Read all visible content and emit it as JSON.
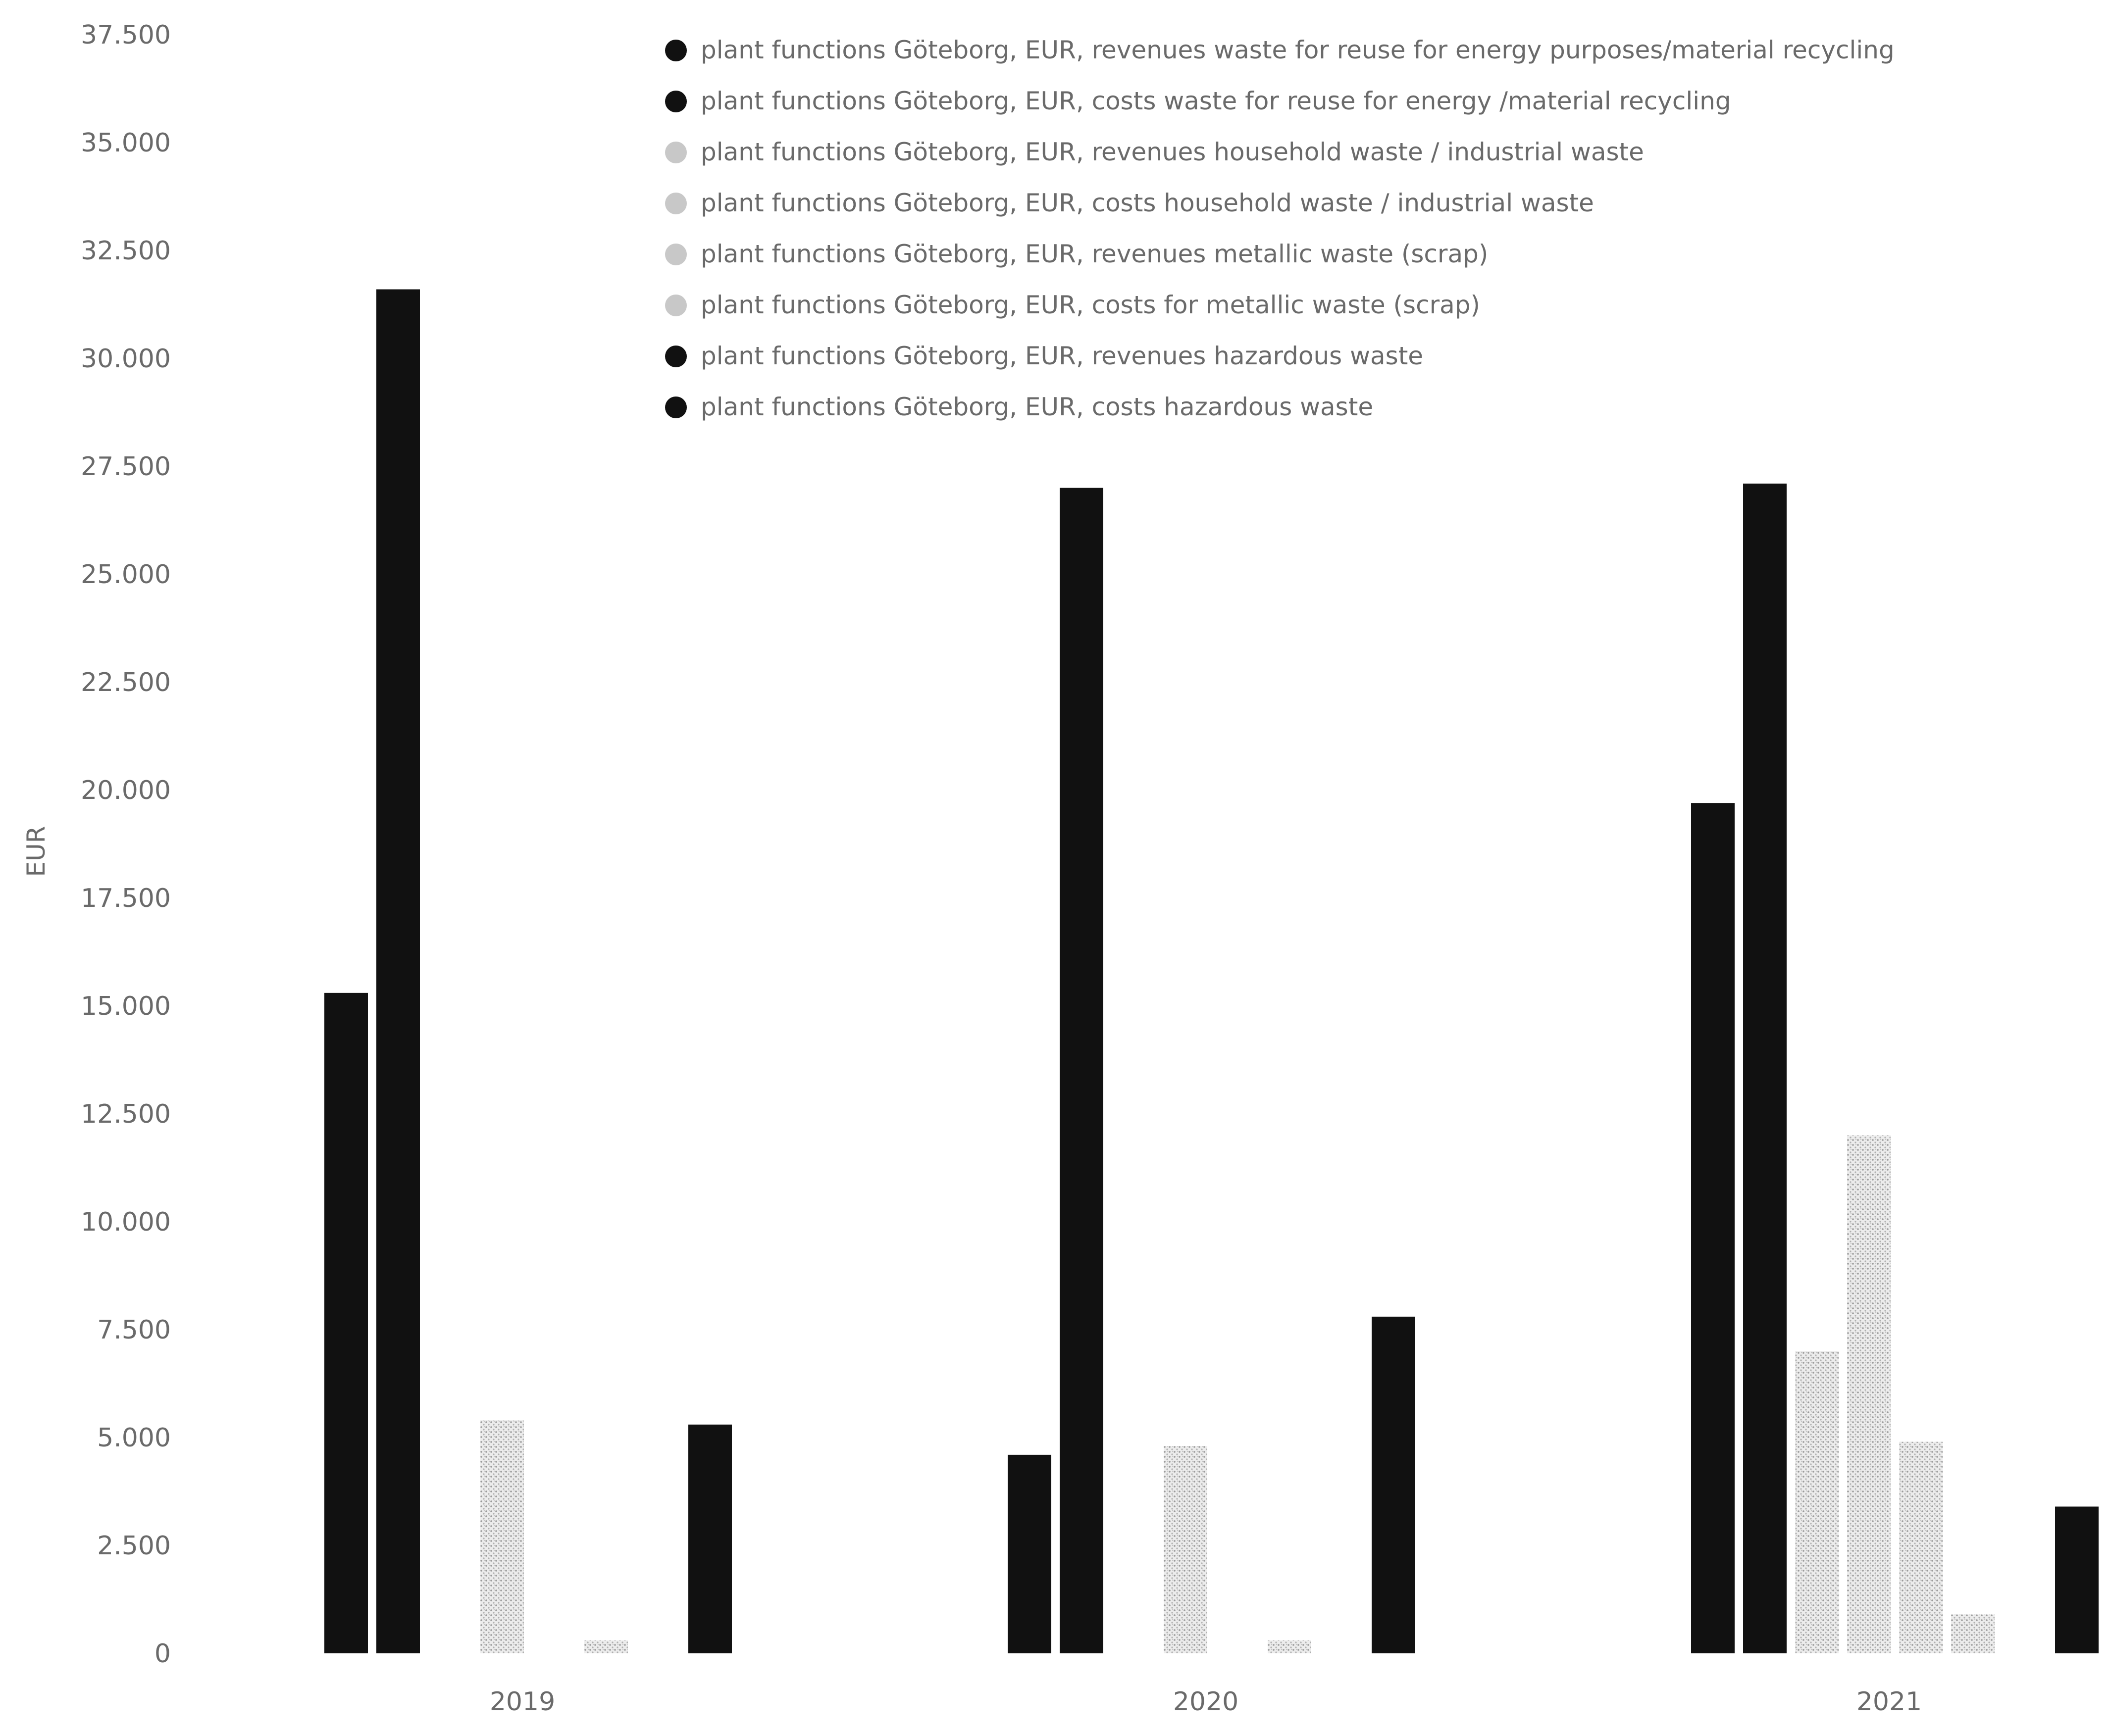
{
  "chart_data": {
    "type": "bar",
    "ylabel": "EUR",
    "xlabel": "",
    "ylim": [
      0,
      37500
    ],
    "yticks": [
      {
        "value": 0,
        "label": "0"
      },
      {
        "value": 2500,
        "label": "2.500"
      },
      {
        "value": 5000,
        "label": "5.000"
      },
      {
        "value": 7500,
        "label": "7.500"
      },
      {
        "value": 10000,
        "label": "10.000"
      },
      {
        "value": 12500,
        "label": "12.500"
      },
      {
        "value": 15000,
        "label": "15.000"
      },
      {
        "value": 17500,
        "label": "17.500"
      },
      {
        "value": 20000,
        "label": "20.000"
      },
      {
        "value": 22500,
        "label": "22.500"
      },
      {
        "value": 25000,
        "label": "25.000"
      },
      {
        "value": 27500,
        "label": "27.500"
      },
      {
        "value": 30000,
        "label": "30.000"
      },
      {
        "value": 32500,
        "label": "32.500"
      },
      {
        "value": 35000,
        "label": "35.000"
      },
      {
        "value": 37500,
        "label": "37.500"
      }
    ],
    "categories": [
      "2019",
      "2020",
      "2021"
    ],
    "legend_position": "top-right",
    "grid": false,
    "series": [
      {
        "name": "plant functions Göteborg, EUR, revenues waste for reuse for energy purposes/material recycling",
        "color": "#111111",
        "pattern": "solid",
        "values": [
          15300,
          4600,
          19700
        ]
      },
      {
        "name": "plant functions Göteborg, EUR, costs waste for reuse for energy /material recycling",
        "color": "#111111",
        "pattern": "solid",
        "values": [
          31600,
          27000,
          27100
        ]
      },
      {
        "name": "plant functions Göteborg, EUR, revenues household waste / industrial waste",
        "color": "#cfcfcf",
        "pattern": "dotted",
        "values": [
          0,
          0,
          7000
        ]
      },
      {
        "name": "plant functions Göteborg, EUR, costs household waste / industrial waste",
        "color": "#cfcfcf",
        "pattern": "dotted",
        "values": [
          5400,
          4800,
          12000
        ]
      },
      {
        "name": "plant functions Göteborg, EUR, revenues metallic waste (scrap)",
        "color": "#dddddd",
        "pattern": "dotted",
        "values": [
          0,
          0,
          4900
        ]
      },
      {
        "name": "plant functions Göteborg, EUR, costs for metallic waste (scrap)",
        "color": "#e4e4e4",
        "pattern": "dotted",
        "values": [
          300,
          300,
          900
        ]
      },
      {
        "name": "plant functions Göteborg, EUR, revenues hazardous waste",
        "color": "#111111",
        "pattern": "solid",
        "values": [
          0,
          0,
          0
        ]
      },
      {
        "name": "plant functions Göteborg, EUR, costs hazardous waste",
        "color": "#111111",
        "pattern": "solid",
        "values": [
          5300,
          7800,
          3400
        ]
      }
    ]
  }
}
